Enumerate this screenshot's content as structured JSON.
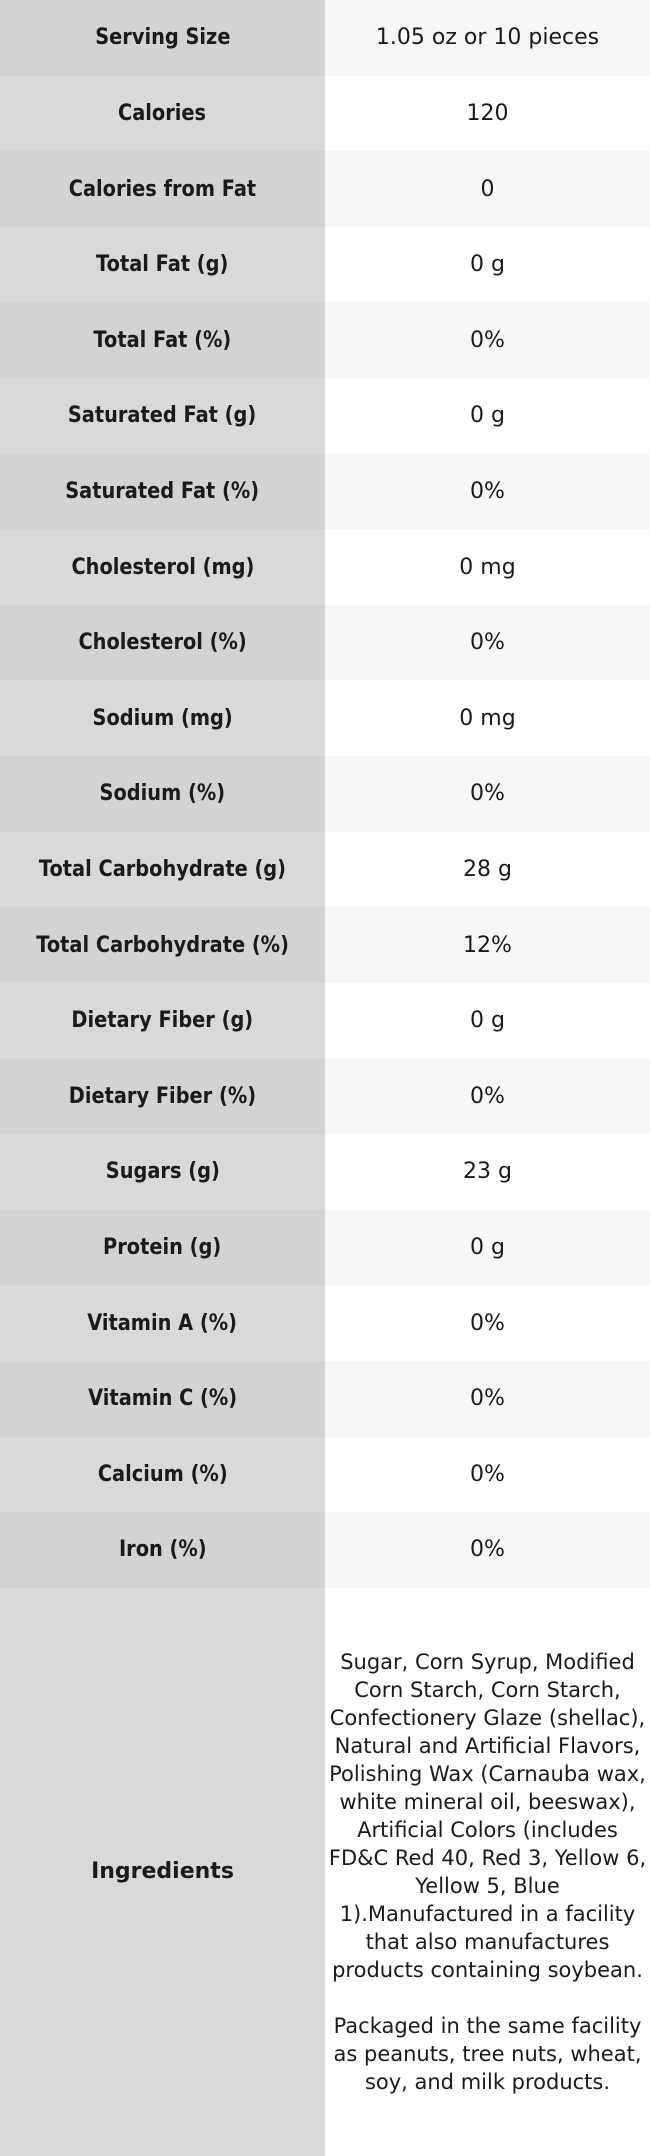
{
  "table": {
    "rows": [
      {
        "label": "Serving Size",
        "value": "1.05 oz or 10 pieces"
      },
      {
        "label": "Calories",
        "value": "120"
      },
      {
        "label": "Calories from Fat",
        "value": "0"
      },
      {
        "label": "Total Fat (g)",
        "value": "0 g"
      },
      {
        "label": "Total Fat (%)",
        "value": "0%"
      },
      {
        "label": "Saturated Fat (g)",
        "value": "0 g"
      },
      {
        "label": "Saturated Fat (%)",
        "value": "0%"
      },
      {
        "label": "Cholesterol (mg)",
        "value": "0 mg"
      },
      {
        "label": "Cholesterol (%)",
        "value": "0%"
      },
      {
        "label": "Sodium (mg)",
        "value": "0 mg"
      },
      {
        "label": "Sodium (%)",
        "value": "0%"
      },
      {
        "label": "Total Carbohydrate (g)",
        "value": "28 g"
      },
      {
        "label": "Total Carbohydrate (%)",
        "value": "12%"
      },
      {
        "label": "Dietary Fiber (g)",
        "value": "0 g"
      },
      {
        "label": "Dietary Fiber (%)",
        "value": "0%"
      },
      {
        "label": "Sugars (g)",
        "value": "23 g"
      },
      {
        "label": "Protein (g)",
        "value": "0 g"
      },
      {
        "label": "Vitamin A (%)",
        "value": "0%"
      },
      {
        "label": "Vitamin C (%)",
        "value": "0%"
      },
      {
        "label": "Calcium (%)",
        "value": "0%"
      },
      {
        "label": "Iron (%)",
        "value": "0%"
      }
    ],
    "ingredients_row": {
      "label": "Ingredients",
      "value": "Sugar, Corn Syrup, Modified Corn Starch, Corn Starch, Confectionery Glaze (shellac), Natural and Artificial Flavors, Polishing Wax (Carnauba wax, white mineral oil, beeswax), Artificial Colors (includes FD&C Red 40, Red 3, Yellow 6, Yellow 5, Blue 1).Manufactured in a facility that also manufactures products containing soybean.\n\nPackaged in the same facility as peanuts, tree nuts, wheat, soy, and milk products."
    },
    "colors": {
      "label_col_striped": "#d3d3d3",
      "label_col_plain": "#d9d9d9",
      "value_col_striped": "#f7f7f7",
      "value_col_plain": "#ffffff",
      "text": "#1a1a1a"
    }
  }
}
